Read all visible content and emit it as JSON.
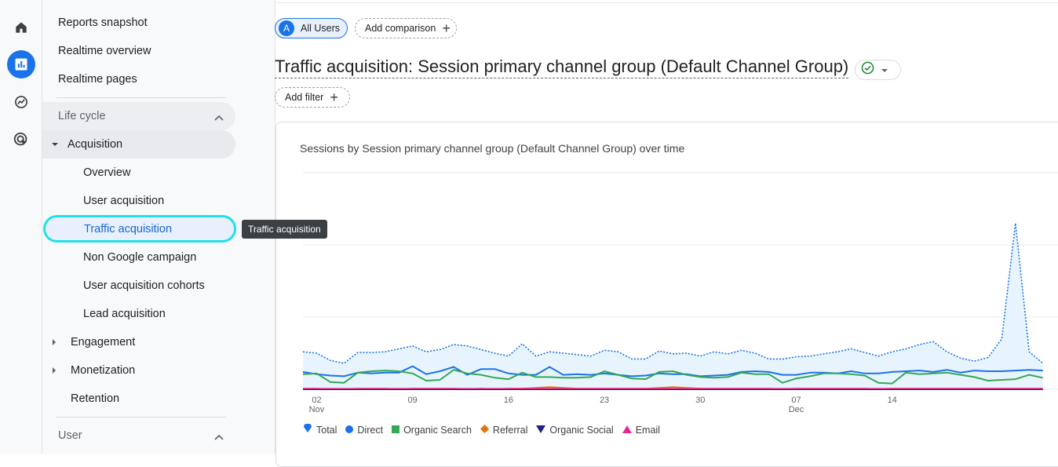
{
  "rail": {
    "items": [
      {
        "name": "home-icon"
      },
      {
        "name": "reports-icon",
        "active": true
      },
      {
        "name": "explore-icon"
      },
      {
        "name": "advertising-icon"
      }
    ]
  },
  "sidebar": {
    "top_items": [
      "Reports snapshot",
      "Realtime overview",
      "Realtime pages"
    ],
    "lifecycle_label": "Life cycle",
    "acquisition_label": "Acquisition",
    "acquisition_children": [
      "Overview",
      "User acquisition",
      "Traffic acquisition",
      "Non Google campaign",
      "User acquisition cohorts",
      "Lead acquisition"
    ],
    "engagement_label": "Engagement",
    "monetization_label": "Monetization",
    "retention_label": "Retention",
    "user_label": "User"
  },
  "tooltip": "Traffic acquisition",
  "header": {
    "segment_avatar": "A",
    "segment_label": "All Users",
    "add_comparison": "Add comparison",
    "title": "Traffic acquisition: Session primary channel group (Default Channel Group)",
    "add_filter": "Add filter"
  },
  "chart_data": {
    "type": "area",
    "title": "Sessions by Session primary channel group (Default Channel Group) over time",
    "x_ticks": [
      {
        "day": "02",
        "month": "Nov"
      },
      {
        "day": "09",
        "month": ""
      },
      {
        "day": "16",
        "month": ""
      },
      {
        "day": "23",
        "month": ""
      },
      {
        "day": "30",
        "month": ""
      },
      {
        "day": "07",
        "month": "Dec"
      },
      {
        "day": "14",
        "month": ""
      }
    ],
    "series": [
      {
        "name": "Total",
        "color": "#1a73e8",
        "values": [
          52,
          50,
          40,
          36,
          51,
          51,
          52,
          56,
          60,
          52,
          55,
          62,
          60,
          55,
          50,
          46,
          63,
          46,
          52,
          50,
          48,
          46,
          54,
          52,
          42,
          42,
          53,
          49,
          50,
          46,
          52,
          49,
          54,
          50,
          42,
          42,
          45,
          46,
          49,
          52,
          56,
          51,
          46,
          52,
          56,
          62,
          66,
          52,
          43,
          39,
          44,
          70,
          230,
          52,
          36
        ]
      },
      {
        "name": "Direct",
        "color": "#1a73e8",
        "values": [
          24,
          21,
          19,
          18,
          23,
          22,
          23,
          23,
          32,
          21,
          25,
          31,
          20,
          28,
          28,
          22,
          20,
          20,
          31,
          20,
          21,
          20,
          22,
          20,
          18,
          19,
          22,
          21,
          21,
          18,
          19,
          20,
          24,
          25,
          24,
          20,
          20,
          23,
          23,
          22,
          25,
          22,
          22,
          24,
          25,
          26,
          24,
          27,
          23,
          26,
          25,
          25,
          26,
          27,
          26
        ]
      },
      {
        "name": "Organic Search",
        "color": "#34a853",
        "values": [
          21,
          22,
          10,
          9,
          23,
          25,
          26,
          25,
          22,
          12,
          13,
          27,
          22,
          20,
          16,
          14,
          23,
          17,
          17,
          16,
          16,
          17,
          25,
          20,
          15,
          14,
          24,
          25,
          20,
          17,
          16,
          17,
          23,
          21,
          21,
          9,
          15,
          18,
          22,
          22,
          21,
          19,
          9,
          8,
          23,
          21,
          22,
          23,
          20,
          17,
          12,
          13,
          14,
          20,
          16
        ]
      },
      {
        "name": "Referral",
        "color": "#e8710a",
        "values": [
          1,
          1,
          0,
          0,
          1,
          1,
          1,
          0,
          1,
          1,
          1,
          1,
          0,
          1,
          0,
          1,
          1,
          2,
          3,
          2,
          1,
          1,
          1,
          1,
          1,
          1,
          2,
          3,
          2,
          1,
          1,
          1,
          1,
          1,
          1,
          0,
          1,
          1,
          1,
          1,
          1,
          1,
          0,
          1,
          1,
          1,
          1,
          1,
          1,
          1,
          1,
          1,
          1,
          1,
          1
        ]
      },
      {
        "name": "Organic Social",
        "color": "#1a237e",
        "values": [
          0,
          0,
          0,
          0,
          0,
          0,
          0,
          0,
          0,
          0,
          0,
          0,
          0,
          0,
          0,
          0,
          0,
          0,
          0,
          0,
          0,
          0,
          0,
          0,
          0,
          0,
          0,
          0,
          0,
          0,
          0,
          0,
          0,
          0,
          0,
          0,
          0,
          0,
          0,
          0,
          0,
          0,
          0,
          0,
          0,
          0,
          0,
          0,
          0,
          0,
          0,
          0,
          0,
          0,
          0
        ]
      },
      {
        "name": "Email",
        "color": "#e52592",
        "values": [
          1,
          1,
          1,
          1,
          1,
          1,
          1,
          1,
          1,
          1,
          1,
          1,
          1,
          1,
          1,
          1,
          1,
          1,
          1,
          1,
          1,
          1,
          1,
          1,
          1,
          1,
          1,
          1,
          1,
          1,
          1,
          1,
          1,
          1,
          1,
          1,
          1,
          1,
          1,
          1,
          1,
          1,
          1,
          1,
          1,
          1,
          1,
          1,
          1,
          1,
          1,
          1,
          1,
          1,
          1
        ]
      }
    ],
    "ylim": [
      0,
      300
    ],
    "grid": true,
    "legend_position": "bottom-left"
  },
  "legend_markers": [
    "teardrop",
    "circle",
    "square",
    "diamond",
    "triangle-down",
    "triangle-up"
  ]
}
